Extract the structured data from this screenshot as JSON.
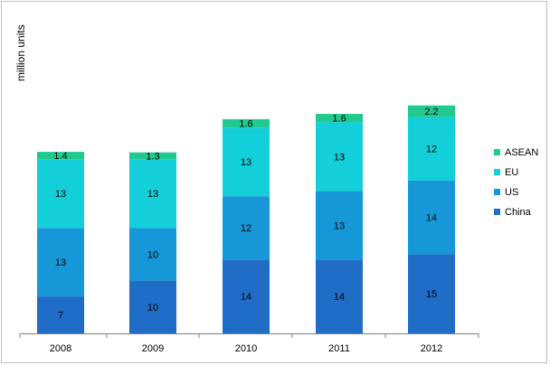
{
  "chart_data": {
    "type": "bar",
    "stacked": true,
    "categories": [
      "2008",
      "2009",
      "2010",
      "2011",
      "2012"
    ],
    "series": [
      {
        "name": "China",
        "color": "#1f6dc7",
        "values": [
          7,
          10,
          14,
          14,
          15
        ]
      },
      {
        "name": "US",
        "color": "#1597d8",
        "values": [
          13,
          10,
          12,
          13,
          14
        ]
      },
      {
        "name": "EU",
        "color": "#12cfd9",
        "values": [
          13,
          13,
          13,
          13,
          12
        ]
      },
      {
        "name": "ASEAN",
        "color": "#20c98e",
        "values": [
          1.4,
          1.3,
          1.6,
          1.6,
          2.2
        ]
      }
    ],
    "ylabel": "million units",
    "ylim": [
      0,
      50
    ],
    "grid": false,
    "legend_position": "right",
    "legend_order": [
      "ASEAN",
      "EU",
      "US",
      "China"
    ]
  }
}
